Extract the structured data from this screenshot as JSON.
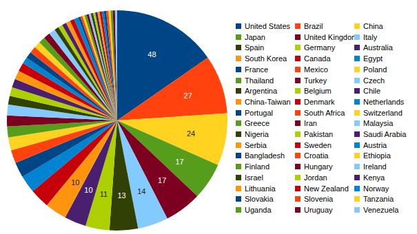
{
  "chart_data": {
    "type": "pie",
    "legend": "right",
    "data_labels": true,
    "categories": [
      "United States",
      "Brazil",
      "China",
      "Japan",
      "United Kingdom",
      "Italy",
      "Spain",
      "Germany",
      "Australia",
      "South Korea",
      "Canada",
      "Egypt",
      "France",
      "Mexico",
      "Poland",
      "Thailand",
      "Turkey",
      "Czech",
      "Argentina",
      "Belgium",
      "Chile",
      "China-Taiwan",
      "Denmark",
      "Netherlands",
      "Portugal",
      "South Africa",
      "Switzerland",
      "Greece",
      "Iran",
      "Malaysia",
      "Nigeria",
      "Pakistan",
      "Saudi Arabia",
      "Serbia",
      "Sweden",
      "Austria",
      "Bangladesh",
      "Croatia",
      "Ethiopia",
      "Finland",
      "Hungary",
      "Ireland",
      "Israel",
      "Jordan",
      "Kenya",
      "Lithuania",
      "New Zealand",
      "Norway",
      "Slovakia",
      "Slovenia",
      "Tanzania",
      "Uganda",
      "Uruguay",
      "Venezuela"
    ],
    "values": [
      48,
      27,
      24,
      17,
      17,
      14,
      13,
      11,
      10,
      10,
      9,
      8,
      7,
      6,
      6,
      5,
      5,
      5,
      4,
      4,
      4,
      4,
      4,
      3,
      3,
      3,
      3,
      3,
      3,
      3,
      2,
      2,
      2,
      2,
      2,
      2,
      1,
      1,
      1,
      1,
      1,
      1,
      1,
      1,
      1,
      1,
      1,
      1,
      1,
      1,
      1,
      1,
      1,
      1
    ],
    "value_labels": [
      "48",
      "27",
      "24",
      "17",
      "17",
      "14",
      "13",
      "11",
      "10",
      "10",
      null,
      null,
      null,
      null,
      null,
      null,
      null,
      null,
      null,
      null,
      null,
      null,
      null,
      null,
      null,
      null,
      null,
      null,
      null,
      null,
      null,
      null,
      null,
      null,
      null,
      null,
      null,
      null,
      null,
      null,
      null,
      null,
      null,
      null,
      null,
      null,
      null,
      null,
      null,
      null,
      null,
      null,
      null,
      null
    ],
    "colors": [
      "#004586",
      "#ff420e",
      "#ffd320",
      "#579d1c",
      "#7e0021",
      "#83caff",
      "#314004",
      "#aecf00",
      "#4b1f6f",
      "#ff950e",
      "#c5000b",
      "#0084d1",
      "#004586",
      "#ff420e",
      "#ffd320",
      "#579d1c",
      "#7e0021",
      "#83caff",
      "#314004",
      "#aecf00",
      "#4b1f6f",
      "#ff950e",
      "#c5000b",
      "#0084d1",
      "#004586",
      "#ff420e",
      "#ffd320",
      "#579d1c",
      "#7e0021",
      "#83caff",
      "#314004",
      "#aecf00",
      "#4b1f6f",
      "#ff950e",
      "#c5000b",
      "#0084d1",
      "#004586",
      "#ff420e",
      "#ffd320",
      "#579d1c",
      "#7e0021",
      "#83caff",
      "#314004",
      "#aecf00",
      "#4b1f6f",
      "#ff950e",
      "#c5000b",
      "#0084d1",
      "#004586",
      "#ff420e",
      "#ffd320",
      "#579d1c",
      "#7e0021",
      "#83caff"
    ]
  }
}
